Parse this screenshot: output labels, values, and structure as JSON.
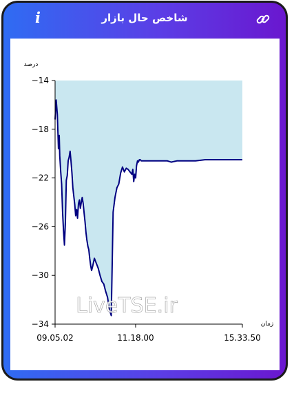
{
  "header": {
    "title": "شاخص حال بازار",
    "info_label": "i",
    "info_icon": "info-icon",
    "link_icon": "link-icon"
  },
  "colors": {
    "frame_gradient": [
      "#2f6cf3",
      "#6a17cf"
    ],
    "line": "#000080",
    "fill": "#c9e7f0"
  },
  "watermark": "LiveTSE.ir",
  "chart_data": {
    "type": "area",
    "ylabel": "درصد",
    "xlabel": "زمان",
    "ylim": [
      -34,
      -14
    ],
    "yticks": [
      -14,
      -18,
      -22,
      -26,
      -30,
      -34
    ],
    "ytick_labels": [
      "−14",
      "−18",
      "−22",
      "−26",
      "−30",
      "−34"
    ],
    "xtick_labels": [
      "09.05.02",
      "11.18.00",
      "15.33.50"
    ],
    "xtick_positions": [
      0,
      0.43,
      1
    ],
    "grid": false,
    "series": [
      {
        "x": [
          0,
          0.006,
          0.012,
          0.018,
          0.022,
          0.025,
          0.03,
          0.035,
          0.04,
          0.045,
          0.05,
          0.055,
          0.06,
          0.065,
          0.07,
          0.075,
          0.08,
          0.085,
          0.09,
          0.095,
          0.1,
          0.105,
          0.11,
          0.115,
          0.12,
          0.125,
          0.13,
          0.135,
          0.14,
          0.145,
          0.15,
          0.155,
          0.16,
          0.165,
          0.17,
          0.175,
          0.18,
          0.185,
          0.19,
          0.195,
          0.2,
          0.21,
          0.22,
          0.23,
          0.24,
          0.25,
          0.26,
          0.27,
          0.28,
          0.29,
          0.3,
          0.31,
          0.32,
          0.33,
          0.34,
          0.35,
          0.36,
          0.37,
          0.38,
          0.39,
          0.4,
          0.41,
          0.415,
          0.42,
          0.425,
          0.43,
          0.435,
          0.44,
          0.445,
          0.45,
          0.455,
          0.46,
          0.47,
          0.48,
          0.49,
          0.5,
          0.51,
          0.52,
          0.53,
          0.54,
          0.55,
          0.56,
          0.57,
          0.575,
          0.58,
          0.585,
          0.59,
          0.6,
          0.62,
          0.65,
          0.7,
          0.75,
          0.8,
          0.85,
          0.9,
          0.95,
          1.0
        ],
        "y": [
          -17.2,
          -15.6,
          -16.8,
          -19.6,
          -18.5,
          -20.2,
          -21.5,
          -22.5,
          -24.8,
          -26.3,
          -27.5,
          -25.6,
          -22.2,
          -21.8,
          -20.6,
          -20.3,
          -19.8,
          -20.6,
          -21.6,
          -22.8,
          -23.5,
          -24.2,
          -25.1,
          -24.6,
          -25.3,
          -24.1,
          -23.8,
          -24.5,
          -24.0,
          -23.6,
          -24.1,
          -24.9,
          -25.6,
          -26.5,
          -27.1,
          -27.6,
          -27.9,
          -28.6,
          -29.2,
          -29.6,
          -29.3,
          -28.6,
          -29.0,
          -29.4,
          -30.0,
          -30.5,
          -30.7,
          -31.3,
          -31.8,
          -32.8,
          -33.3,
          -24.8,
          -23.6,
          -22.8,
          -22.5,
          -21.6,
          -21.1,
          -21.5,
          -21.2,
          -21.3,
          -21.5,
          -21.7,
          -21.3,
          -22.3,
          -21.7,
          -22.0,
          -21.0,
          -20.6,
          -20.7,
          -20.5,
          -20.5,
          -20.6,
          -20.6,
          -20.6,
          -20.6,
          -20.6,
          -20.6,
          -20.6,
          -20.6,
          -20.6,
          -20.6,
          -20.6,
          -20.6,
          -20.6,
          -20.6,
          -20.6,
          -20.6,
          -20.6,
          -20.7,
          -20.6,
          -20.6,
          -20.6,
          -20.5,
          -20.5,
          -20.5,
          -20.5,
          -20.5
        ]
      }
    ]
  }
}
